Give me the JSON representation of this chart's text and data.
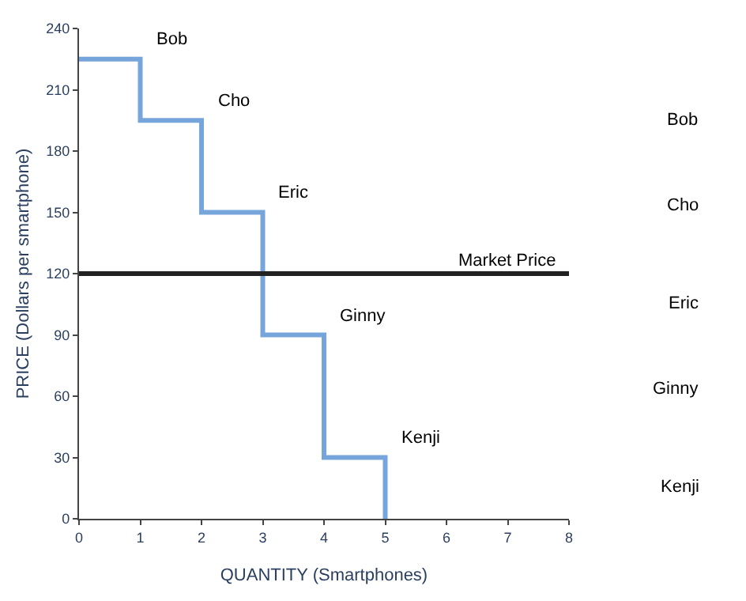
{
  "chart_data": {
    "type": "step",
    "xlabel": "QUANTITY (Smartphones)",
    "ylabel": "PRICE (Dollars per smartphone)",
    "x": [
      0,
      1,
      2,
      3,
      4,
      5
    ],
    "series": [
      {
        "color": "#76a5dc",
        "values": [
          225,
          195,
          150,
          90,
          30,
          0
        ]
      }
    ],
    "xlim": [
      0,
      8
    ],
    "xticks": [
      0,
      1,
      2,
      3,
      4,
      5,
      6,
      7,
      8
    ],
    "ylim": [
      0,
      240
    ],
    "yticks": [
      0,
      30,
      60,
      90,
      120,
      150,
      180,
      210,
      240
    ],
    "marker": "none",
    "line_style": "solid",
    "ref_lines": [
      {
        "axis": "y",
        "value": 120,
        "label": "Market Price",
        "color": "#222222"
      }
    ],
    "annotations": [
      {
        "text": "Bob",
        "x": 1,
        "y": 225
      },
      {
        "text": "Cho",
        "x": 2,
        "y": 195
      },
      {
        "text": "Eric",
        "x": 3,
        "y": 150
      },
      {
        "text": "Ginny",
        "x": 4,
        "y": 90
      },
      {
        "text": "Kenji",
        "x": 5,
        "y": 30
      },
      "Bob",
      "Cho",
      "Eric",
      "Ginny",
      "Kenji"
    ]
  }
}
